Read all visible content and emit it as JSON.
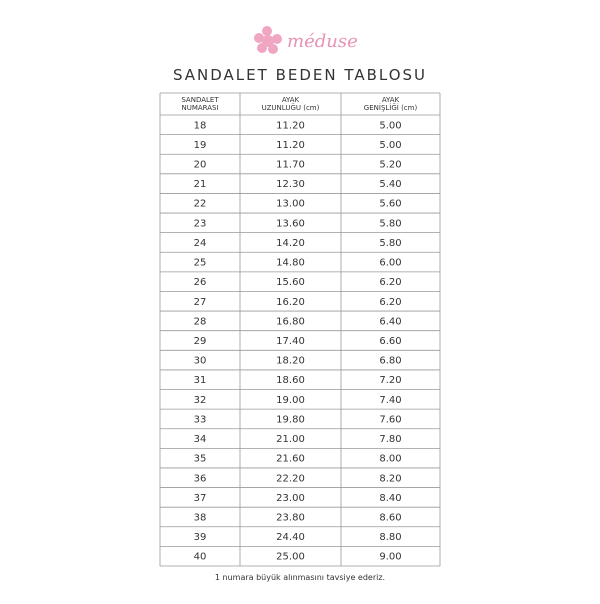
{
  "header": {
    "logo": "méduse",
    "title": "SANDALET BEDEN TABLOSU"
  },
  "table": {
    "columns": [
      [
        "SANDALET",
        "NUMARASI"
      ],
      [
        "AYAK",
        "UZUNLUĞU (cm)"
      ],
      [
        "AYAK",
        "GENİŞLİĞİ (cm)"
      ]
    ],
    "rows": [
      [
        "18",
        "11.20",
        "5.00"
      ],
      [
        "19",
        "11.20",
        "5.00"
      ],
      [
        "20",
        "11.70",
        "5.20"
      ],
      [
        "21",
        "12.30",
        "5.40"
      ],
      [
        "22",
        "13.00",
        "5.60"
      ],
      [
        "23",
        "13.60",
        "5.80"
      ],
      [
        "24",
        "14.20",
        "5.80"
      ],
      [
        "25",
        "14.80",
        "6.00"
      ],
      [
        "26",
        "15.60",
        "6.20"
      ],
      [
        "27",
        "16.20",
        "6.20"
      ],
      [
        "28",
        "16.80",
        "6.40"
      ],
      [
        "29",
        "17.40",
        "6.60"
      ],
      [
        "30",
        "18.20",
        "6.80"
      ],
      [
        "31",
        "18.60",
        "7.20"
      ],
      [
        "32",
        "19.00",
        "7.40"
      ],
      [
        "33",
        "19.80",
        "7.60"
      ],
      [
        "34",
        "21.00",
        "7.80"
      ],
      [
        "35",
        "21.60",
        "8.00"
      ],
      [
        "36",
        "22.20",
        "8.20"
      ],
      [
        "37",
        "23.00",
        "8.40"
      ],
      [
        "38",
        "23.80",
        "8.60"
      ],
      [
        "39",
        "24.40",
        "8.80"
      ],
      [
        "40",
        "25.00",
        "9.00"
      ]
    ]
  },
  "footer": {
    "note": "1 numara büyük alınmasını tavsiye ederiz."
  }
}
